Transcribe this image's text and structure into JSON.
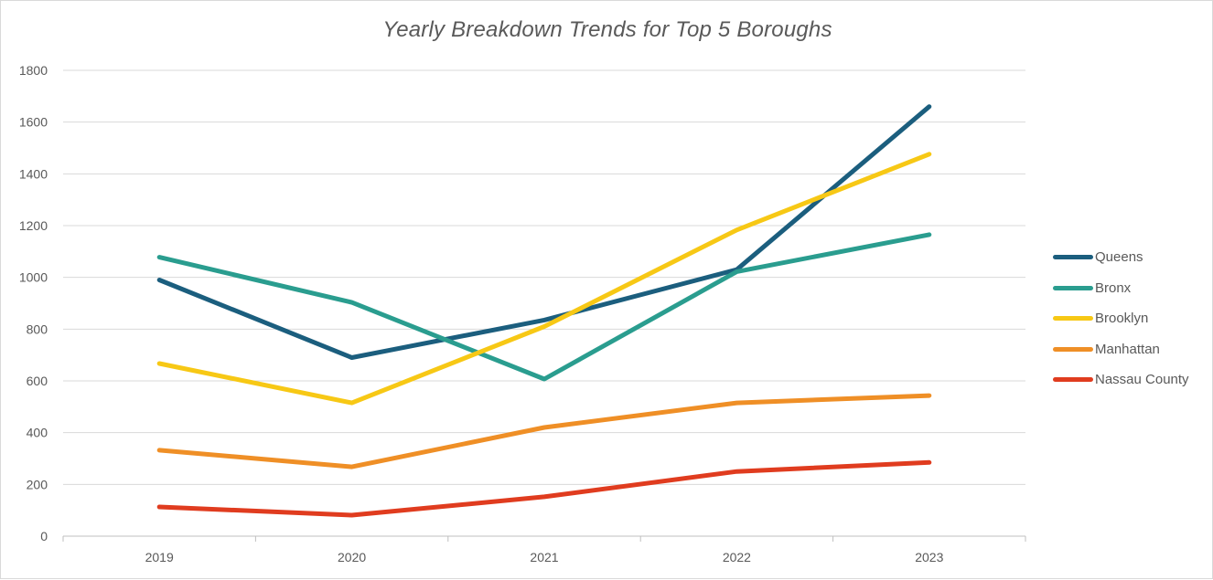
{
  "chart_data": {
    "type": "line",
    "title": "Yearly Breakdown Trends for Top 5 Boroughs",
    "xlabel": "",
    "ylabel": "",
    "categories": [
      "2019",
      "2020",
      "2021",
      "2022",
      "2023"
    ],
    "ylim": [
      0,
      1800
    ],
    "yticks": [
      0,
      200,
      400,
      600,
      800,
      1000,
      1200,
      1400,
      1600,
      1800
    ],
    "grid": true,
    "legend": "right",
    "series": [
      {
        "name": "Queens",
        "color": "#1b5e7e",
        "values": [
          990,
          690,
          835,
          1030,
          1660
        ]
      },
      {
        "name": "Bronx",
        "color": "#2a9d8f",
        "values": [
          1078,
          903,
          607,
          1022,
          1165
        ]
      },
      {
        "name": "Brooklyn",
        "color": "#f7c815",
        "values": [
          667,
          515,
          810,
          1183,
          1476
        ]
      },
      {
        "name": "Manhattan",
        "color": "#ef8f26",
        "values": [
          332,
          268,
          420,
          515,
          543
        ]
      },
      {
        "name": "Nassau County",
        "color": "#e03c1f",
        "values": [
          113,
          81,
          152,
          250,
          285
        ]
      }
    ]
  }
}
